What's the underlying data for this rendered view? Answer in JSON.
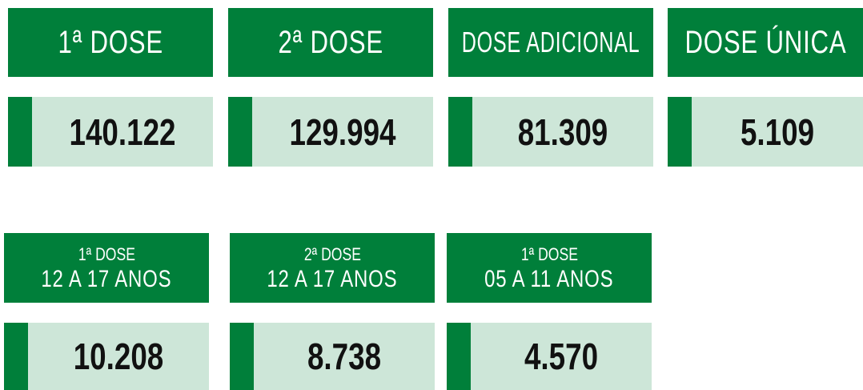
{
  "top": [
    {
      "label": "1ª DOSE",
      "value": "140.122"
    },
    {
      "label": "2ª DOSE",
      "value": "129.994"
    },
    {
      "label": "DOSE ADICIONAL",
      "value": "81.309"
    },
    {
      "label": "DOSE ÚNICA",
      "value": "5.109"
    }
  ],
  "bottom": [
    {
      "line1": "1ª DOSE",
      "line2": "12 A 17 ANOS",
      "value": "10.208"
    },
    {
      "line1": "2ª DOSE",
      "line2": "12 A 17 ANOS",
      "value": "8.738"
    },
    {
      "line1": "1ª DOSE",
      "line2": "05 A 11 ANOS",
      "value": "4.570"
    }
  ]
}
